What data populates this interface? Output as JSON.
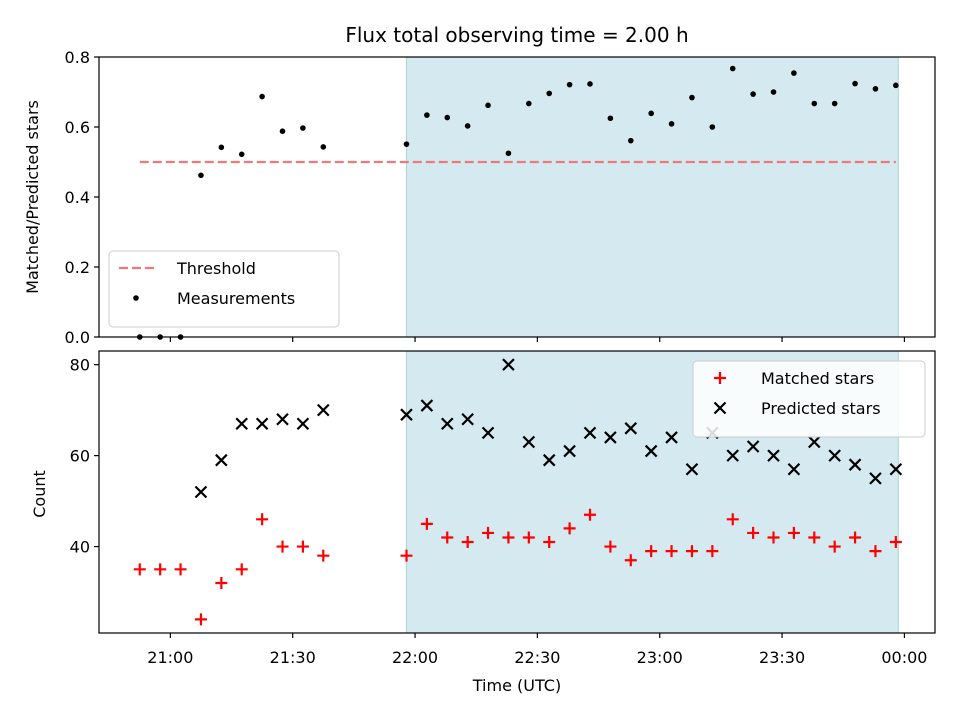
{
  "chart_data": {
    "type": "scatter",
    "title": "Flux total observing time = 2.00 h",
    "xlabel": "Time (UTC)",
    "x_tick_labels": [
      "21:00",
      "21:30",
      "22:00",
      "22:30",
      "23:00",
      "23:30",
      "00:00"
    ],
    "x_ticks_minutes": [
      0,
      30,
      60,
      90,
      120,
      150,
      180
    ],
    "xlim_minutes": [
      -17.5,
      187.5
    ],
    "shaded_range_minutes": [
      57.9,
      178.5
    ],
    "shade_color": "#d4eaf0",
    "x_minutes": [
      -7.5,
      -2.5,
      2.5,
      7.5,
      12.5,
      17.5,
      22.5,
      27.5,
      32.5,
      37.5,
      57.9,
      62.9,
      67.9,
      72.9,
      77.9,
      82.9,
      87.9,
      92.9,
      97.9,
      102.9,
      107.9,
      112.9,
      117.9,
      122.9,
      127.9,
      132.9,
      137.9,
      142.9,
      147.9,
      152.9,
      157.9,
      162.9,
      167.9,
      172.9,
      177.9
    ],
    "panels": [
      {
        "ylabel": "Matched/Predicted stars",
        "ylim": [
          0,
          0.8
        ],
        "yticks": [
          0.0,
          0.2,
          0.4,
          0.6,
          0.8
        ],
        "ytick_labels": [
          "0.0",
          "0.2",
          "0.4",
          "0.6",
          "0.8"
        ],
        "threshold": {
          "name": "Threshold",
          "value": 0.5,
          "x_range_minutes": [
            -7.5,
            177.9
          ],
          "color": "#f07878"
        },
        "series": [
          {
            "name": "Measurements",
            "marker": "dot",
            "color": "#000000",
            "values": [
              0.0,
              0.0,
              0.0,
              0.462,
              0.542,
              0.522,
              0.687,
              0.588,
              0.597,
              0.543,
              0.551,
              0.634,
              0.627,
              0.603,
              0.662,
              0.525,
              0.667,
              0.696,
              0.721,
              0.723,
              0.625,
              0.561,
              0.639,
              0.609,
              0.684,
              0.6,
              0.767,
              0.694,
              0.7,
              0.754,
              0.667,
              0.667,
              0.724,
              0.709,
              0.719
            ]
          }
        ],
        "legend_position": "lower-left"
      },
      {
        "ylabel": "Count",
        "ylim": [
          21,
          83
        ],
        "yticks": [
          40,
          60,
          80
        ],
        "ytick_labels": [
          "40",
          "60",
          "80"
        ],
        "series": [
          {
            "name": "Matched stars",
            "marker": "plus",
            "color": "#ff0000",
            "values": [
              35,
              35,
              35,
              24,
              32,
              35,
              46,
              40,
              40,
              38,
              38,
              45,
              42,
              41,
              43,
              42,
              42,
              41,
              44,
              47,
              40,
              37,
              39,
              39,
              39,
              39,
              46,
              43,
              42,
              43,
              42,
              40,
              42,
              39,
              41
            ]
          },
          {
            "name": "Predicted stars",
            "marker": "x",
            "color": "#000000",
            "values": [
              null,
              null,
              null,
              52,
              59,
              67,
              67,
              68,
              67,
              70,
              69,
              71,
              67,
              68,
              65,
              80,
              63,
              59,
              61,
              65,
              64,
              66,
              61,
              64,
              57,
              65,
              60,
              62,
              60,
              57,
              63,
              60,
              58,
              55,
              57
            ]
          }
        ],
        "legend_position": "top-right"
      }
    ]
  }
}
